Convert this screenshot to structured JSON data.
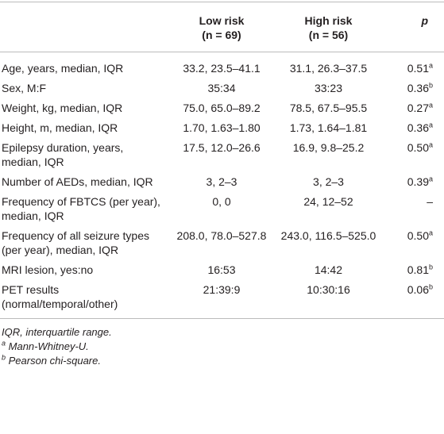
{
  "table": {
    "columns": [
      {
        "title": "Low risk",
        "sub": "(n = 69)"
      },
      {
        "title": "High risk",
        "sub": "(n = 56)"
      },
      {
        "title": "p"
      }
    ],
    "rows": [
      {
        "label": "Age, years, median, IQR",
        "low": "33.2, 23.5–41.1",
        "high": "31.1, 26.3–37.5",
        "p": "0.51",
        "note": "a"
      },
      {
        "label": "Sex, M:F",
        "low": "35:34",
        "high": "33:23",
        "p": "0.36",
        "note": "b"
      },
      {
        "label": "Weight, kg, median, IQR",
        "low": "75.0, 65.0–89.2",
        "high": "78.5, 67.5–95.5",
        "p": "0.27",
        "note": "a"
      },
      {
        "label": "Height, m, median, IQR",
        "low": "1.70, 1.63–1.80",
        "high": "1.73, 1.64–1.81",
        "p": "0.36",
        "note": "a"
      },
      {
        "label": "Epilepsy duration, years, median, IQR",
        "low": "17.5, 12.0–26.6",
        "high": "16.9, 9.8–25.2",
        "p": "0.50",
        "note": "a"
      },
      {
        "label": "Number of AEDs, median, IQR",
        "low": "3, 2–3",
        "high": "3, 2–3",
        "p": "0.39",
        "note": "a"
      },
      {
        "label": "Frequency of FBTCS (per year), median, IQR",
        "low": "0, 0",
        "high": "24, 12–52",
        "p": "–"
      },
      {
        "label": "Frequency of all seizure types (per year), median, IQR",
        "low": "208.0, 78.0–527.8",
        "high": "243.0, 116.5–525.0",
        "p": "0.50",
        "note": "a"
      },
      {
        "label": "MRI lesion, yes:no",
        "low": "16:53",
        "high": "14:42",
        "p": "0.81",
        "note": "b"
      },
      {
        "label": "PET results (normal/temporal/other)",
        "low": "21:39:9",
        "high": "10:30:16",
        "p": "0.06",
        "note": "b"
      }
    ],
    "footnotes": [
      {
        "text": "IQR, interquartile range."
      },
      {
        "mark": "a",
        "text": "Mann-Whitney-U."
      },
      {
        "mark": "b",
        "text": "Pearson chi-square."
      }
    ]
  }
}
